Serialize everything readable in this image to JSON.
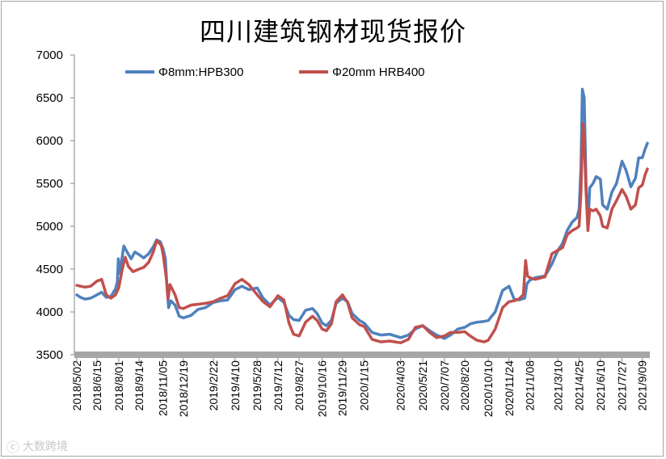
{
  "title": "四川建筑钢材现货报价",
  "watermark": "大数跨境",
  "chart_data": {
    "type": "line",
    "title": "四川建筑钢材现货报价",
    "xlabel": "",
    "ylabel": "",
    "ylim": [
      3500,
      7000
    ],
    "yticks": [
      3500,
      4000,
      4500,
      5000,
      5500,
      6000,
      6500,
      7000
    ],
    "grid": false,
    "legend": "top-left",
    "x_range": [
      "2018-05-02",
      "2021-09-20"
    ],
    "xtick_labels": [
      "2018/5/02",
      "2018/6/15",
      "2018/8/01",
      "2018/9/14",
      "2018/11/05",
      "2018/12/19",
      "2019/2/22",
      "2019/4/10",
      "2019/5/28",
      "2019/7/12",
      "2019/8/27",
      "2019/10/16",
      "2019/11/29",
      "2020/1/15",
      "2020/4/03",
      "2020/5/21",
      "2020/7/07",
      "2020/8/20",
      "2020/10/10",
      "2020/11/24",
      "2021/1/08",
      "2021/3/10",
      "2021/4/25",
      "2021/6/10",
      "2021/7/27",
      "2021/9/09"
    ],
    "xtick_dates": [
      "2018-05-02",
      "2018-06-15",
      "2018-08-01",
      "2018-09-14",
      "2018-11-05",
      "2018-12-19",
      "2019-02-22",
      "2019-04-10",
      "2019-05-28",
      "2019-07-12",
      "2019-08-27",
      "2019-10-16",
      "2019-11-29",
      "2020-01-15",
      "2020-04-03",
      "2020-05-21",
      "2020-07-07",
      "2020-08-20",
      "2020-10-10",
      "2020-11-24",
      "2021-01-08",
      "2021-03-10",
      "2021-04-25",
      "2021-06-10",
      "2021-07-27",
      "2021-09-09"
    ],
    "series": [
      {
        "name": "Φ8mm:HPB300",
        "color": "#4f81bd",
        "points": [
          [
            "2018-05-02",
            4200
          ],
          [
            "2018-05-10",
            4170
          ],
          [
            "2018-05-20",
            4150
          ],
          [
            "2018-06-01",
            4160
          ],
          [
            "2018-06-15",
            4200
          ],
          [
            "2018-06-25",
            4230
          ],
          [
            "2018-07-05",
            4170
          ],
          [
            "2018-07-15",
            4180
          ],
          [
            "2018-07-25",
            4270
          ],
          [
            "2018-07-29",
            4350
          ],
          [
            "2018-07-31",
            4620
          ],
          [
            "2018-08-03",
            4450
          ],
          [
            "2018-08-12",
            4770
          ],
          [
            "2018-08-20",
            4690
          ],
          [
            "2018-08-28",
            4620
          ],
          [
            "2018-09-05",
            4700
          ],
          [
            "2018-09-14",
            4670
          ],
          [
            "2018-09-24",
            4630
          ],
          [
            "2018-10-05",
            4680
          ],
          [
            "2018-10-15",
            4760
          ],
          [
            "2018-10-22",
            4840
          ],
          [
            "2018-10-30",
            4820
          ],
          [
            "2018-11-05",
            4740
          ],
          [
            "2018-11-10",
            4620
          ],
          [
            "2018-11-14",
            4250
          ],
          [
            "2018-11-17",
            4050
          ],
          [
            "2018-11-22",
            4130
          ],
          [
            "2018-12-01",
            4080
          ],
          [
            "2018-12-10",
            3950
          ],
          [
            "2018-12-19",
            3930
          ],
          [
            "2019-01-05",
            3960
          ],
          [
            "2019-01-20",
            4030
          ],
          [
            "2019-02-05",
            4050
          ],
          [
            "2019-02-22",
            4110
          ],
          [
            "2019-03-10",
            4130
          ],
          [
            "2019-03-25",
            4140
          ],
          [
            "2019-04-10",
            4260
          ],
          [
            "2019-04-25",
            4300
          ],
          [
            "2019-05-10",
            4260
          ],
          [
            "2019-05-28",
            4280
          ],
          [
            "2019-06-10",
            4160
          ],
          [
            "2019-06-25",
            4080
          ],
          [
            "2019-07-12",
            4170
          ],
          [
            "2019-07-25",
            4110
          ],
          [
            "2019-08-05",
            3960
          ],
          [
            "2019-08-15",
            3910
          ],
          [
            "2019-08-27",
            3900
          ],
          [
            "2019-09-10",
            4020
          ],
          [
            "2019-09-25",
            4040
          ],
          [
            "2019-10-05",
            3980
          ],
          [
            "2019-10-16",
            3870
          ],
          [
            "2019-10-25",
            3840
          ],
          [
            "2019-11-05",
            3900
          ],
          [
            "2019-11-15",
            4100
          ],
          [
            "2019-11-29",
            4160
          ],
          [
            "2019-12-10",
            4120
          ],
          [
            "2019-12-20",
            3980
          ],
          [
            "2020-01-05",
            3900
          ],
          [
            "2020-01-15",
            3870
          ],
          [
            "2020-02-01",
            3760
          ],
          [
            "2020-02-20",
            3730
          ],
          [
            "2020-03-10",
            3740
          ],
          [
            "2020-04-03",
            3700
          ],
          [
            "2020-04-20",
            3730
          ],
          [
            "2020-05-05",
            3800
          ],
          [
            "2020-05-21",
            3840
          ],
          [
            "2020-06-05",
            3780
          ],
          [
            "2020-06-20",
            3730
          ],
          [
            "2020-07-07",
            3690
          ],
          [
            "2020-07-20",
            3730
          ],
          [
            "2020-08-05",
            3800
          ],
          [
            "2020-08-20",
            3820
          ],
          [
            "2020-09-01",
            3860
          ],
          [
            "2020-09-15",
            3880
          ],
          [
            "2020-10-01",
            3890
          ],
          [
            "2020-10-10",
            3900
          ],
          [
            "2020-10-25",
            4000
          ],
          [
            "2020-11-10",
            4250
          ],
          [
            "2020-11-24",
            4300
          ],
          [
            "2020-12-05",
            4150
          ],
          [
            "2020-12-15",
            4140
          ],
          [
            "2020-12-28",
            4160
          ],
          [
            "2021-01-02",
            4330
          ],
          [
            "2021-01-08",
            4370
          ],
          [
            "2021-01-20",
            4400
          ],
          [
            "2021-02-10",
            4420
          ],
          [
            "2021-02-25",
            4560
          ],
          [
            "2021-03-10",
            4720
          ],
          [
            "2021-03-20",
            4800
          ],
          [
            "2021-03-30",
            4950
          ],
          [
            "2021-04-10",
            5050
          ],
          [
            "2021-04-20",
            5100
          ],
          [
            "2021-04-25",
            5200
          ],
          [
            "2021-04-29",
            5700
          ],
          [
            "2021-05-02",
            6600
          ],
          [
            "2021-05-06",
            6500
          ],
          [
            "2021-05-10",
            5500
          ],
          [
            "2021-05-14",
            5000
          ],
          [
            "2021-05-18",
            5450
          ],
          [
            "2021-05-25",
            5500
          ],
          [
            "2021-06-01",
            5580
          ],
          [
            "2021-06-10",
            5550
          ],
          [
            "2021-06-15",
            5250
          ],
          [
            "2021-06-25",
            5200
          ],
          [
            "2021-07-05",
            5400
          ],
          [
            "2021-07-15",
            5500
          ],
          [
            "2021-07-27",
            5760
          ],
          [
            "2021-08-05",
            5650
          ],
          [
            "2021-08-15",
            5460
          ],
          [
            "2021-08-25",
            5560
          ],
          [
            "2021-09-01",
            5800
          ],
          [
            "2021-09-09",
            5800
          ],
          [
            "2021-09-15",
            5900
          ],
          [
            "2021-09-20",
            5970
          ]
        ]
      },
      {
        "name": "Φ20mm HRB400",
        "color": "#c0504d",
        "points": [
          [
            "2018-05-02",
            4310
          ],
          [
            "2018-05-10",
            4300
          ],
          [
            "2018-05-20",
            4290
          ],
          [
            "2018-06-01",
            4300
          ],
          [
            "2018-06-15",
            4360
          ],
          [
            "2018-06-25",
            4380
          ],
          [
            "2018-07-05",
            4200
          ],
          [
            "2018-07-15",
            4160
          ],
          [
            "2018-07-25",
            4200
          ],
          [
            "2018-08-01",
            4280
          ],
          [
            "2018-08-08",
            4480
          ],
          [
            "2018-08-15",
            4640
          ],
          [
            "2018-08-22",
            4530
          ],
          [
            "2018-09-01",
            4470
          ],
          [
            "2018-09-14",
            4500
          ],
          [
            "2018-09-24",
            4520
          ],
          [
            "2018-10-05",
            4580
          ],
          [
            "2018-10-15",
            4700
          ],
          [
            "2018-10-22",
            4830
          ],
          [
            "2018-11-01",
            4780
          ],
          [
            "2018-11-05",
            4680
          ],
          [
            "2018-11-12",
            4400
          ],
          [
            "2018-11-16",
            4150
          ],
          [
            "2018-11-20",
            4320
          ],
          [
            "2018-12-01",
            4200
          ],
          [
            "2018-12-10",
            4050
          ],
          [
            "2018-12-19",
            4040
          ],
          [
            "2019-01-05",
            4080
          ],
          [
            "2019-01-20",
            4090
          ],
          [
            "2019-02-05",
            4100
          ],
          [
            "2019-02-22",
            4120
          ],
          [
            "2019-03-10",
            4160
          ],
          [
            "2019-03-25",
            4190
          ],
          [
            "2019-04-10",
            4330
          ],
          [
            "2019-04-25",
            4380
          ],
          [
            "2019-05-10",
            4320
          ],
          [
            "2019-05-28",
            4200
          ],
          [
            "2019-06-10",
            4120
          ],
          [
            "2019-06-25",
            4060
          ],
          [
            "2019-07-12",
            4190
          ],
          [
            "2019-07-25",
            4140
          ],
          [
            "2019-08-05",
            3870
          ],
          [
            "2019-08-15",
            3740
          ],
          [
            "2019-08-27",
            3720
          ],
          [
            "2019-09-10",
            3880
          ],
          [
            "2019-09-25",
            3950
          ],
          [
            "2019-10-05",
            3900
          ],
          [
            "2019-10-16",
            3800
          ],
          [
            "2019-10-25",
            3780
          ],
          [
            "2019-11-05",
            3860
          ],
          [
            "2019-11-15",
            4120
          ],
          [
            "2019-11-29",
            4200
          ],
          [
            "2019-12-10",
            4110
          ],
          [
            "2019-12-20",
            3930
          ],
          [
            "2020-01-05",
            3850
          ],
          [
            "2020-01-15",
            3830
          ],
          [
            "2020-02-01",
            3680
          ],
          [
            "2020-02-20",
            3650
          ],
          [
            "2020-03-10",
            3660
          ],
          [
            "2020-04-03",
            3640
          ],
          [
            "2020-04-20",
            3680
          ],
          [
            "2020-05-05",
            3820
          ],
          [
            "2020-05-21",
            3840
          ],
          [
            "2020-06-05",
            3760
          ],
          [
            "2020-06-20",
            3700
          ],
          [
            "2020-07-07",
            3720
          ],
          [
            "2020-07-20",
            3760
          ],
          [
            "2020-08-05",
            3760
          ],
          [
            "2020-08-20",
            3770
          ],
          [
            "2020-09-01",
            3720
          ],
          [
            "2020-09-15",
            3670
          ],
          [
            "2020-10-01",
            3650
          ],
          [
            "2020-10-10",
            3670
          ],
          [
            "2020-10-25",
            3800
          ],
          [
            "2020-11-10",
            4050
          ],
          [
            "2020-11-24",
            4120
          ],
          [
            "2020-12-05",
            4130
          ],
          [
            "2020-12-15",
            4150
          ],
          [
            "2020-12-25",
            4200
          ],
          [
            "2020-12-30",
            4600
          ],
          [
            "2021-01-03",
            4420
          ],
          [
            "2021-01-08",
            4400
          ],
          [
            "2021-01-20",
            4380
          ],
          [
            "2021-02-10",
            4410
          ],
          [
            "2021-02-25",
            4680
          ],
          [
            "2021-03-10",
            4720
          ],
          [
            "2021-03-20",
            4750
          ],
          [
            "2021-03-30",
            4900
          ],
          [
            "2021-04-10",
            4950
          ],
          [
            "2021-04-20",
            4980
          ],
          [
            "2021-04-25",
            5000
          ],
          [
            "2021-04-29",
            5400
          ],
          [
            "2021-05-03",
            6200
          ],
          [
            "2021-05-06",
            6000
          ],
          [
            "2021-05-10",
            5400
          ],
          [
            "2021-05-14",
            4950
          ],
          [
            "2021-05-18",
            5200
          ],
          [
            "2021-05-25",
            5180
          ],
          [
            "2021-06-01",
            5200
          ],
          [
            "2021-06-10",
            5120
          ],
          [
            "2021-06-15",
            5000
          ],
          [
            "2021-06-25",
            4980
          ],
          [
            "2021-07-05",
            5200
          ],
          [
            "2021-07-15",
            5300
          ],
          [
            "2021-07-27",
            5430
          ],
          [
            "2021-08-05",
            5350
          ],
          [
            "2021-08-15",
            5200
          ],
          [
            "2021-08-25",
            5250
          ],
          [
            "2021-09-01",
            5450
          ],
          [
            "2021-09-09",
            5480
          ],
          [
            "2021-09-15",
            5600
          ],
          [
            "2021-09-20",
            5670
          ]
        ]
      }
    ]
  }
}
